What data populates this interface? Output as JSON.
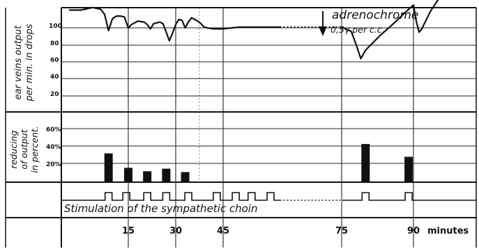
{
  "chart_data": [
    {
      "type": "line",
      "ylabel": [
        "ear veins output",
        "per min. in drops"
      ],
      "y_ticks": [
        "100",
        "80",
        "60",
        "40",
        "20"
      ],
      "ylim": [
        0,
        120
      ],
      "series": [
        {
          "points": [
            [
              0,
              100
            ],
            [
              3,
              100
            ],
            [
              6,
              103
            ],
            [
              8,
              101
            ],
            [
              9,
              95
            ],
            [
              10,
              76
            ],
            [
              11,
              90
            ],
            [
              12,
              93
            ],
            [
              13,
              93
            ],
            [
              14,
              92
            ],
            [
              15,
              79
            ],
            [
              16,
              83
            ],
            [
              18,
              87
            ],
            [
              20,
              86
            ],
            [
              21,
              83
            ],
            [
              22,
              78
            ],
            [
              23,
              84
            ],
            [
              25,
              86
            ],
            [
              26,
              84
            ],
            [
              27,
              74
            ],
            [
              28,
              64
            ],
            [
              29,
              73
            ],
            [
              30,
              83
            ],
            [
              31,
              89
            ],
            [
              32,
              88
            ],
            [
              33,
              79
            ],
            [
              34,
              86
            ],
            [
              35,
              91
            ],
            [
              37,
              87
            ],
            [
              38,
              84
            ],
            [
              39,
              80
            ],
            [
              40,
              79
            ],
            [
              42,
              78
            ],
            [
              45,
              78
            ],
            [
              50,
              80
            ],
            [
              55,
              80
            ],
            [
              60,
              80
            ],
            [
              63,
              80
            ],
            [
              70,
              80
            ],
            [
              75,
              80
            ],
            [
              77,
              75
            ],
            [
              78,
              60
            ],
            [
              79,
              43
            ],
            [
              80,
              53
            ],
            [
              83,
              70
            ],
            [
              86,
              85
            ],
            [
              89,
              101
            ],
            [
              90,
              106
            ],
            [
              91,
              87
            ],
            [
              92,
              74
            ],
            [
              93,
              78
            ],
            [
              96,
              98
            ],
            [
              99,
              113
            ]
          ],
          "dashed_x_range": [
            63,
            70
          ]
        }
      ],
      "annotations": [
        "adrenochrome",
        "0,5γ per c.c."
      ]
    },
    {
      "type": "bar",
      "ylabel": [
        "reducing",
        "of output",
        "in percent."
      ],
      "y_ticks": [
        "60%",
        "40%",
        "20%"
      ],
      "ylim": [
        0,
        70
      ],
      "x": [
        10,
        15,
        21,
        27,
        33,
        80,
        89
      ],
      "values": [
        33,
        16,
        12,
        15,
        11,
        44,
        29
      ]
    },
    {
      "type": "line",
      "label": "Stimulation of the sympathetic choin",
      "pulses_x": [
        10,
        14.5,
        21,
        27,
        34,
        43,
        49,
        54,
        60,
        80,
        89
      ]
    }
  ],
  "x_axis": {
    "tick_labels": [
      "15",
      "30",
      "45",
      "75",
      "90"
    ],
    "tick_x": [
      15,
      30,
      45,
      75,
      90
    ],
    "unit_label": "minutes",
    "break_marks": true
  }
}
